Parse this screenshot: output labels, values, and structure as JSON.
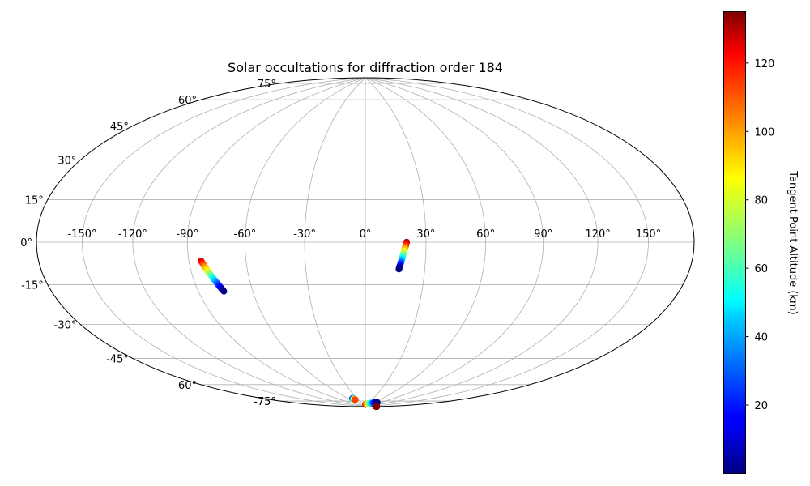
{
  "chart_data": {
    "type": "scatter",
    "projection": "hammer",
    "title": "Solar occultations for diffraction order 184",
    "grid": true,
    "lon_ticks": [
      "-150°",
      "-120°",
      "-90°",
      "-60°",
      "-30°",
      "0°",
      "30°",
      "60°",
      "90°",
      "120°",
      "150°"
    ],
    "lon_tick_values": [
      -150,
      -120,
      -90,
      -60,
      -30,
      0,
      30,
      60,
      90,
      120,
      150
    ],
    "lat_ticks": [
      "-75°",
      "-60°",
      "-45°",
      "-30°",
      "-15°",
      "0°",
      "15°",
      "30°",
      "45°",
      "60°",
      "75°"
    ],
    "lat_tick_values": [
      -75,
      -60,
      -45,
      -30,
      -15,
      0,
      15,
      30,
      45,
      60,
      75
    ],
    "colorbar": {
      "label": "Tangent Point Altitude (km)",
      "colormap": "jet",
      "range": [
        0,
        135
      ],
      "ticks": [
        "20",
        "40",
        "60",
        "80",
        "100",
        "120"
      ],
      "tick_values": [
        20,
        40,
        60,
        80,
        100,
        120
      ]
    },
    "series": [
      {
        "lon_start": 20.4,
        "lat_start": 0.1,
        "lon_end": 16.9,
        "lat_end": -13.3,
        "alt_start": 130,
        "alt_end": 0
      },
      {
        "lon_start": -83.5,
        "lat_start": -8.6,
        "lon_end": -75.8,
        "lat_end": -23.1,
        "alt_start": 125,
        "alt_end": 0
      },
      {
        "lon_start": -46.0,
        "lat_start": -84.0,
        "lon_end": -43.0,
        "lat_end": -85.0,
        "alt_start": 10,
        "alt_end": 110
      },
      {
        "lon_start": 1.0,
        "lat_start": -88.5,
        "lon_end": 76.0,
        "lat_end": -86.5,
        "alt_start": 125,
        "alt_end": 0
      },
      {
        "lon_start": 170.0,
        "lat_start": -88.2,
        "lon_end": 185.0,
        "lat_end": -88.0,
        "alt_start": 130,
        "alt_end": 135
      }
    ]
  }
}
